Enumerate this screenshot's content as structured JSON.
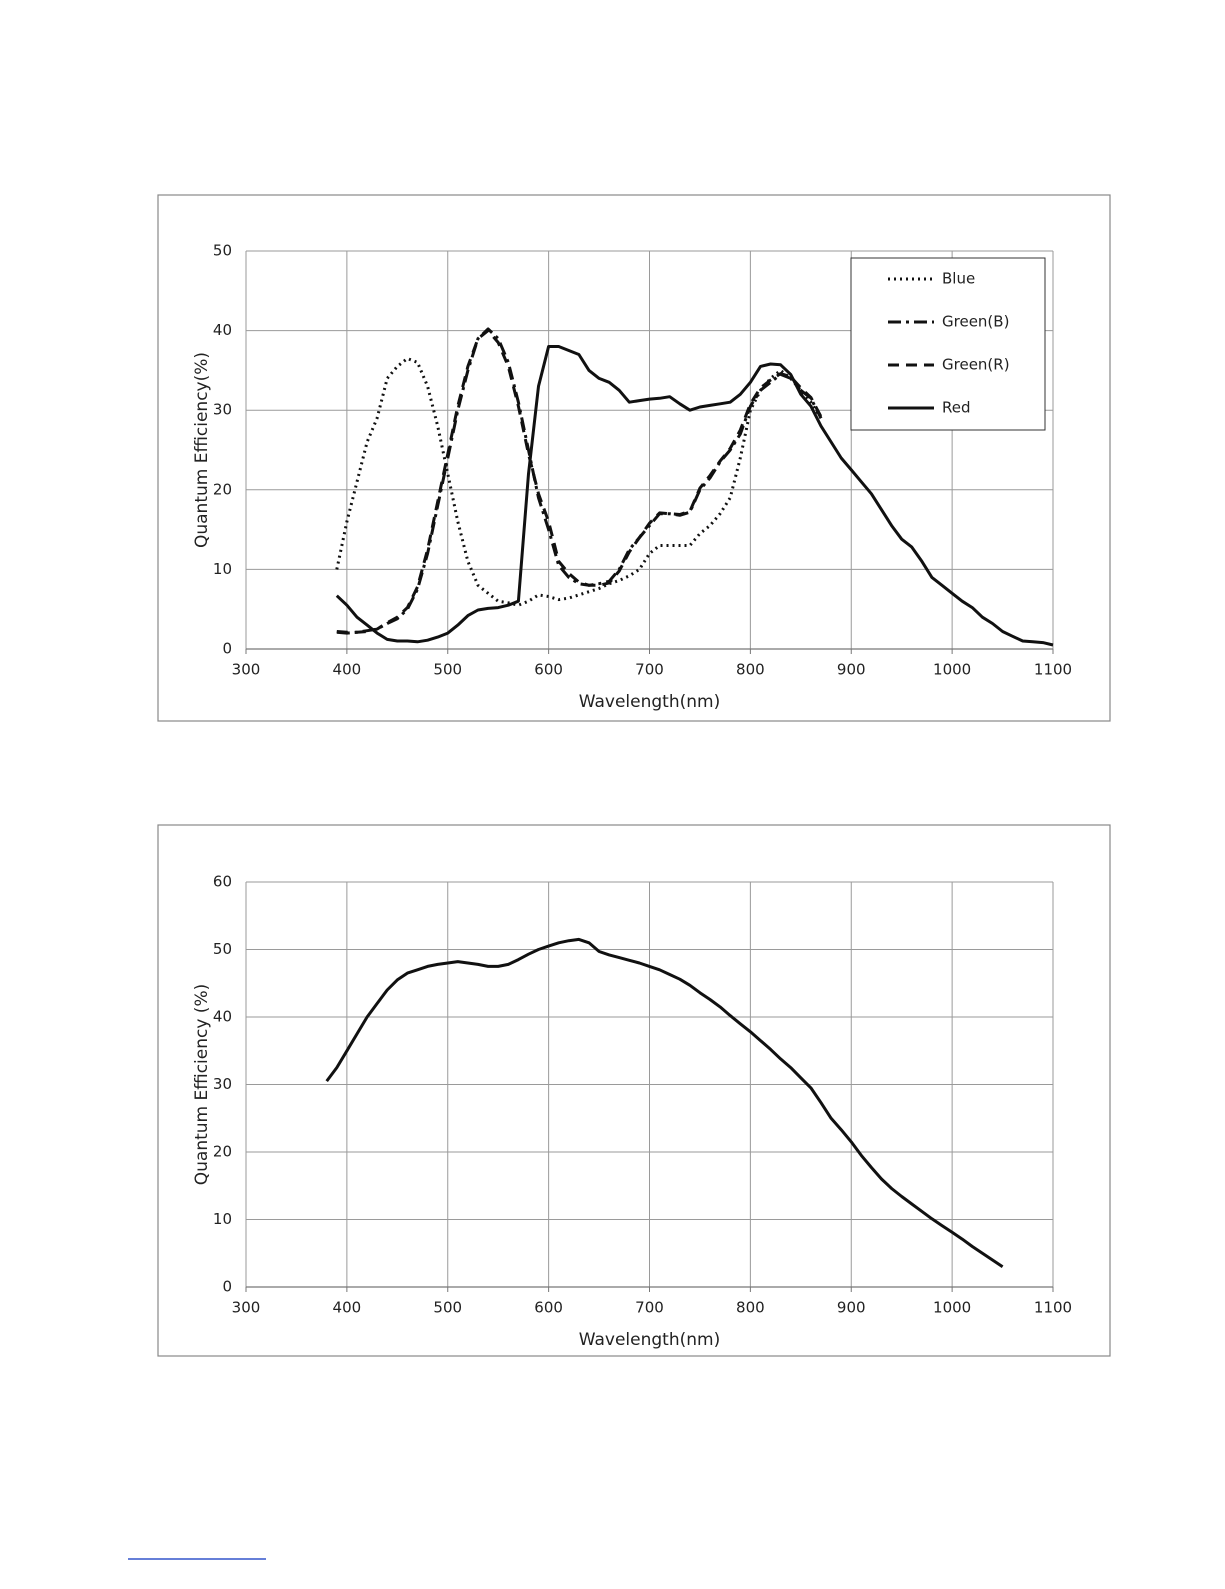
{
  "chart_data": [
    {
      "type": "line",
      "xlabel": "Wavelength(nm)",
      "ylabel": "Quantum Efficiency(%)",
      "x": [
        390,
        400,
        410,
        420,
        430,
        440,
        450,
        460,
        470,
        480,
        490,
        500,
        510,
        520,
        530,
        540,
        550,
        560,
        570,
        580,
        590,
        600,
        610,
        620,
        630,
        640,
        650,
        660,
        670,
        680,
        690,
        700,
        710,
        720,
        730,
        740,
        750,
        760,
        770,
        780,
        790,
        800,
        810,
        820,
        830,
        840,
        850,
        860,
        870,
        880,
        890,
        900,
        910,
        920,
        930,
        940,
        950,
        960,
        970,
        980,
        990,
        1000,
        1010,
        1020,
        1030,
        1040,
        1050,
        1060,
        1070,
        1080,
        1090,
        1100
      ],
      "series": [
        {
          "name": "Blue",
          "color": "#111111",
          "line_style": "dotted",
          "values": [
            10,
            16,
            21,
            26,
            29,
            34,
            35.5,
            36.5,
            36,
            33,
            28,
            22,
            16,
            11,
            8,
            7,
            6,
            5.8,
            5.5,
            6,
            6.8,
            6.6,
            6.2,
            6.4,
            6.8,
            7.2,
            7.6,
            8.2,
            8.6,
            9.2,
            10,
            12,
            13,
            13,
            13,
            13,
            14.5,
            15.5,
            17,
            19,
            24,
            30,
            32.5,
            34,
            35,
            34,
            32.5,
            31,
            29,
            null,
            null,
            null,
            null,
            null,
            null,
            null,
            null,
            null,
            null,
            null,
            null,
            null,
            null,
            null,
            null,
            null,
            null,
            null,
            null,
            null,
            null,
            null
          ]
        },
        {
          "name": "Green(B)",
          "color": "#111111",
          "line_style": "dash-dot",
          "values": [
            2.1,
            2,
            2.1,
            2.3,
            2.5,
            3.2,
            3.8,
            5,
            7.5,
            12,
            18,
            24,
            30,
            35,
            39,
            40.2,
            39,
            36,
            31,
            25,
            19,
            15,
            10.5,
            9,
            8.2,
            8,
            8.2,
            8.5,
            10,
            12.5,
            14,
            15.5,
            17,
            17,
            16.8,
            17.2,
            20,
            21.5,
            23.5,
            25,
            27,
            30.5,
            32.5,
            33.5,
            34.5,
            34,
            32.5,
            31.5,
            29,
            null,
            null,
            null,
            null,
            null,
            null,
            null,
            null,
            null,
            null,
            null,
            null,
            null,
            null,
            null,
            null,
            null,
            null,
            null,
            null,
            null,
            null,
            null
          ]
        },
        {
          "name": "Green(R)",
          "color": "#111111",
          "line_style": "dashed",
          "values": [
            2.2,
            2.1,
            2.1,
            2.2,
            2.5,
            3.3,
            4,
            5.2,
            7.8,
            12.5,
            18.5,
            24.5,
            30.5,
            35.5,
            39,
            40,
            38.5,
            35.5,
            30.5,
            24.5,
            19.5,
            16,
            11,
            9.5,
            8.4,
            8,
            8,
            8.3,
            9.8,
            12.2,
            14,
            15.8,
            17.1,
            17,
            16.9,
            17.3,
            20.2,
            21.8,
            23.6,
            25.2,
            27.5,
            30.8,
            32.8,
            33.8,
            34.6,
            34.2,
            32.8,
            31.6,
            29.2,
            null,
            null,
            null,
            null,
            null,
            null,
            null,
            null,
            null,
            null,
            null,
            null,
            null,
            null,
            null,
            null,
            null,
            null,
            null,
            null,
            null,
            null,
            null
          ]
        },
        {
          "name": "Red",
          "color": "#111111",
          "line_style": "solid",
          "values": [
            6.7,
            5.5,
            4,
            3,
            2,
            1.2,
            1,
            1,
            0.9,
            1.1,
            1.5,
            2,
            3,
            4.2,
            4.9,
            5.1,
            5.2,
            5.5,
            6,
            22,
            33,
            38,
            38,
            37.5,
            37,
            35,
            34,
            33.5,
            32.5,
            31,
            31.2,
            31.4,
            31.5,
            31.7,
            30.8,
            30,
            30.4,
            30.6,
            30.8,
            31,
            32,
            33.5,
            35.5,
            35.8,
            35.7,
            34.5,
            32,
            30.5,
            28,
            26,
            24,
            22.5,
            21,
            19.5,
            17.5,
            15.5,
            13.8,
            12.8,
            11,
            9,
            8,
            7,
            6,
            5.2,
            4,
            3.2,
            2.2,
            1.6,
            1,
            0.9,
            0.8,
            0.5
          ]
        }
      ],
      "xlim": [
        300,
        1100
      ],
      "xticks": [
        300,
        400,
        500,
        600,
        700,
        800,
        900,
        1000,
        1100
      ],
      "ylim": [
        0,
        50
      ],
      "yticks": [
        0,
        10,
        20,
        30,
        40,
        50
      ],
      "grid": true,
      "legend": "upper right"
    },
    {
      "type": "line",
      "xlabel": "Wavelength(nm)",
      "ylabel": "Quantum  Efficiency (%)",
      "x": [
        380,
        390,
        400,
        410,
        420,
        430,
        440,
        450,
        460,
        470,
        480,
        490,
        500,
        510,
        520,
        530,
        540,
        550,
        560,
        570,
        580,
        590,
        600,
        610,
        620,
        630,
        640,
        650,
        660,
        670,
        680,
        690,
        700,
        710,
        720,
        730,
        740,
        750,
        760,
        770,
        780,
        790,
        800,
        810,
        820,
        830,
        840,
        850,
        860,
        870,
        880,
        890,
        900,
        910,
        920,
        930,
        940,
        950,
        960,
        970,
        980,
        990,
        1000,
        1010,
        1020,
        1030,
        1040,
        1050
      ],
      "series": [
        {
          "color": "#111111",
          "line_style": "solid",
          "values": [
            30.5,
            32.5,
            35,
            37.5,
            40,
            42,
            44,
            45.5,
            46.5,
            47,
            47.5,
            47.8,
            48,
            48.2,
            48,
            47.8,
            47.5,
            47.5,
            47.8,
            48.5,
            49.3,
            50,
            50.5,
            51,
            51.3,
            51.5,
            51,
            49.7,
            49.2,
            48.8,
            48.4,
            48,
            47.5,
            47,
            46.3,
            45.6,
            44.7,
            43.6,
            42.6,
            41.5,
            40.2,
            39,
            37.8,
            36.5,
            35.2,
            33.8,
            32.5,
            31,
            29.5,
            27.3,
            25,
            23.3,
            21.5,
            19.5,
            17.7,
            16,
            14.6,
            13.4,
            12.3,
            11.2,
            10.1,
            9.1,
            8.1,
            7.1,
            6,
            5,
            4,
            3
          ]
        }
      ],
      "xlim": [
        300,
        1100
      ],
      "xticks": [
        300,
        400,
        500,
        600,
        700,
        800,
        900,
        1000,
        1100
      ],
      "ylim": [
        0,
        60
      ],
      "yticks": [
        0,
        10,
        20,
        30,
        40,
        50,
        60
      ],
      "grid": true
    }
  ]
}
